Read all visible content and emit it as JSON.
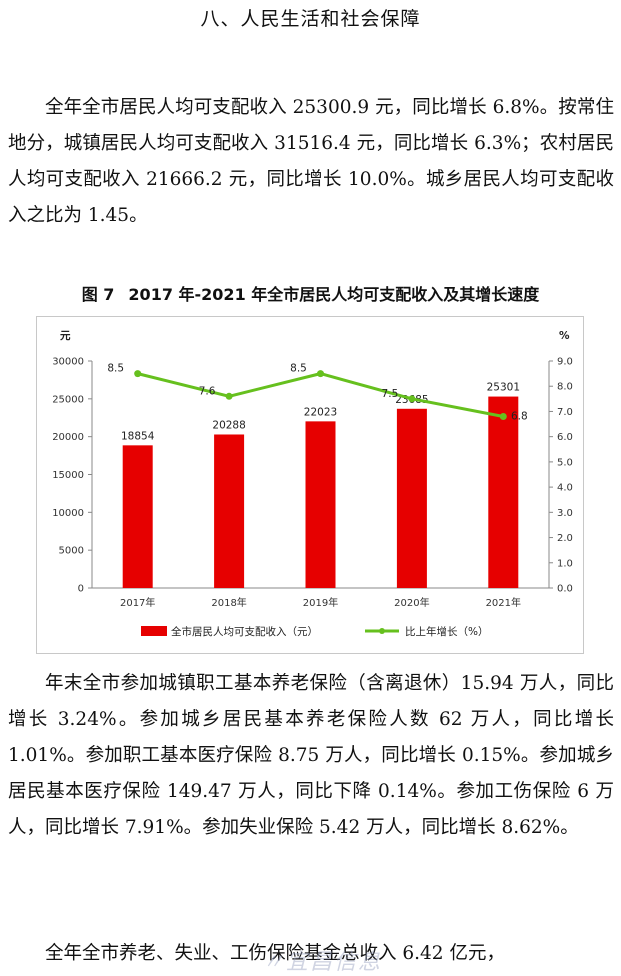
{
  "section_title": "八、人民生活和社会保障",
  "paragraphs": {
    "p1": "全年全市居民人均可支配收入 25300.9 元，同比增长 6.8%。按常住地分，城镇居民人均可支配收入 31516.4 元，同比增长 6.3%；农村居民人均可支配收入 21666.2 元，同比增长 10.0%。城乡居民人均可支配收入之比为 1.45。",
    "p2": "年末全市参加城镇职工基本养老保险（含离退休）15.94 万人，同比增长 3.24%。参加城乡居民基本养老保险人数 62 万人，同比增长 1.01%。参加职工基本医疗保险 8.75 万人，同比增长 0.15%。参加城乡居民基本医疗保险 149.47 万人，同比下降 0.14%。参加工伤保险 6 万人，同比增长 7.91%。参加失业保险 5.42 万人，同比增长 8.62%。",
    "p3": "全年全市养老、失业、工伤保险基金总收入 6.42 亿元，"
  },
  "figure": {
    "number": "图 7",
    "title": "2017 年-2021 年全市居民人均可支配收入及其增长速度"
  },
  "chart_data": {
    "type": "bar",
    "categories": [
      "2017年",
      "2018年",
      "2019年",
      "2020年",
      "2021年"
    ],
    "left_unit": "元",
    "right_unit": "%",
    "left_ylim": [
      0,
      30000
    ],
    "left_ticks": [
      "0",
      "5000",
      "10000",
      "15000",
      "20000",
      "25000",
      "30000"
    ],
    "right_ylim": [
      0,
      9
    ],
    "right_ticks": [
      "0.0",
      "1.0",
      "2.0",
      "3.0",
      "4.0",
      "5.0",
      "6.0",
      "7.0",
      "8.0",
      "9.0"
    ],
    "series": [
      {
        "name": "全市居民人均可支配收入（元）",
        "kind": "bar",
        "axis": "left",
        "color": "#e60000",
        "values": [
          18854,
          20288,
          22023,
          23685,
          25301
        ],
        "labels": [
          "18854",
          "20288",
          "22023",
          "23685",
          "25301"
        ]
      },
      {
        "name": "比上年增长（%）",
        "kind": "line",
        "axis": "right",
        "color": "#66c01e",
        "values": [
          8.5,
          7.6,
          8.5,
          7.5,
          6.8
        ],
        "labels": [
          "8.5",
          "7.6",
          "8.5",
          "7.5",
          "6.8"
        ]
      }
    ],
    "grid": false,
    "legend_position": "bottom"
  }
}
